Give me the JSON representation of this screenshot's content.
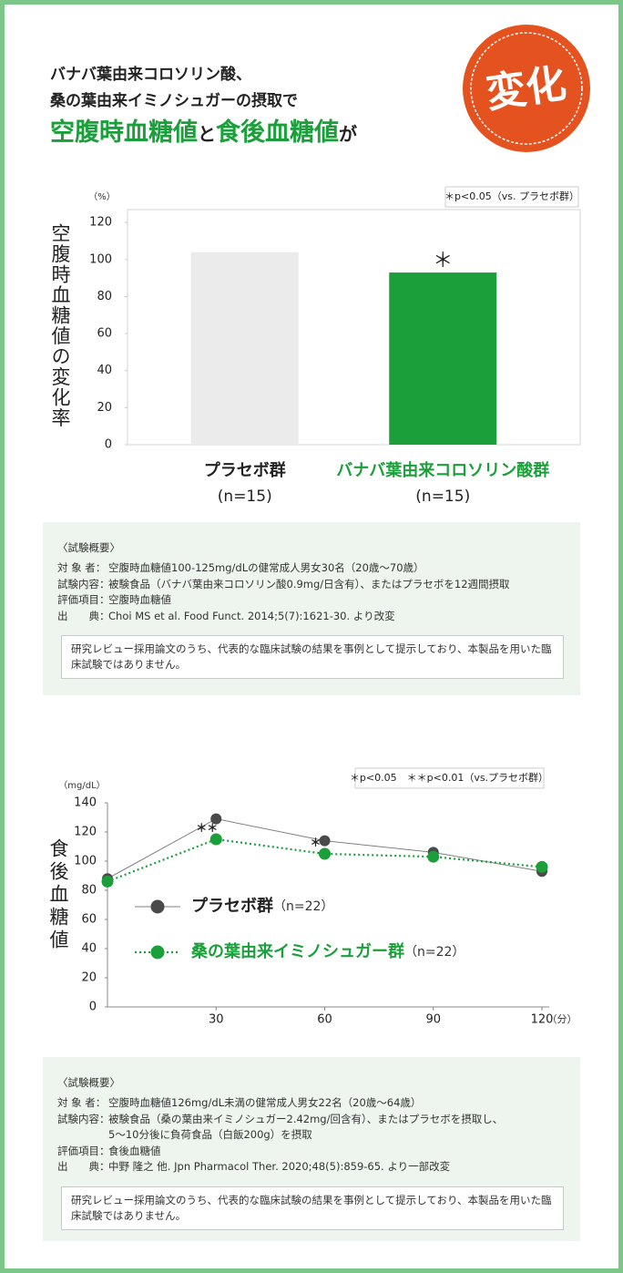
{
  "header": {
    "lines": [
      "バナバ葉由来コロソリン酸、",
      "桑の葉由来イミノシュガーの摂取で"
    ],
    "headline": [
      "空腹時血糖値",
      "と",
      "食後血糖値",
      "が"
    ],
    "badge": "変化"
  },
  "chart_data": [
    {
      "type": "bar",
      "y_label": "空腹時血糖値の変化率",
      "y_unit": "（%）",
      "note": "＊p<0.05（vs. プラセボ群）",
      "categories": [
        "プラセボ群",
        "バナバ葉由来コロソリン酸群"
      ],
      "category_notes": [
        "(n=15)",
        "(n=15)"
      ],
      "values": [
        104,
        93
      ],
      "colors": [
        "#ebebeb",
        "#1a9f3a"
      ],
      "label_colors": [
        "#222222",
        "#1a9f3a"
      ],
      "significance": [
        null,
        "＊"
      ],
      "ylim": [
        0,
        127
      ],
      "yticks": [
        0,
        20,
        40,
        60,
        80,
        100,
        120
      ]
    },
    {
      "type": "line",
      "y_label": "食後血糖値",
      "y_unit": "（mg/dL）",
      "x_unit": "（分）",
      "note": "＊p<0.05　＊＊p<0.01（vs.プラセボ群）",
      "x": [
        0,
        30,
        60,
        90,
        120
      ],
      "xlim": [
        0,
        120
      ],
      "xticks": [
        30,
        60,
        90,
        120
      ],
      "ylim": [
        0,
        140
      ],
      "yticks": [
        0,
        20,
        40,
        60,
        80,
        100,
        120,
        140
      ],
      "series": [
        {
          "name": "プラセボ群",
          "n_label": "（n=22）",
          "color": "#4a4a4a",
          "dashed": false,
          "values": [
            88,
            129,
            114,
            106,
            93
          ],
          "significance": [
            null,
            null,
            null,
            null,
            null
          ]
        },
        {
          "name": "桑の葉由来イミノシュガー群",
          "n_label": "（n=22）",
          "color": "#1a9f3a",
          "dashed": true,
          "values": [
            86,
            115,
            105,
            103,
            96
          ],
          "significance": [
            null,
            "＊＊",
            "＊",
            null,
            null
          ]
        }
      ]
    }
  ],
  "studies": [
    {
      "title": "〈試験概要〉",
      "rows": [
        [
          "対 象 者：",
          "空腹時血糖値100-125mg/dLの健常成人男女30名（20歳〜70歳）"
        ],
        [
          "試験内容：",
          "被験食品（バナバ葉由来コロソリン酸0.9mg/日含有）、またはプラセボを12週間摂取"
        ],
        [
          "評価項目：",
          "空腹時血糖値"
        ],
        [
          "出　　典：",
          "Choi MS et al. Food Funct. 2014;5(7):1621-30. より改変"
        ]
      ],
      "disclaimer": "研究レビュー採用論文のうち、代表的な臨床試験の結果を事例として提示しており、本製品を用いた臨床試験ではありません。"
    },
    {
      "title": "〈試験概要〉",
      "rows": [
        [
          "対 象 者：",
          "空腹時血糖値126mg/dL未満の健常成人男女22名（20歳〜64歳）"
        ],
        [
          "試験内容：",
          [
            "被験食品（桑の葉由来イミノシュガー2.42mg/回含有）、またはプラセボを摂取し、",
            "5〜10分後に負荷食品（白飯200g）を摂取"
          ]
        ],
        [
          "評価項目：",
          "食後血糖値"
        ],
        [
          "出　　典：",
          "中野 隆之 他. Jpn Pharmacol Ther. 2020;48(5):859-65. より一部改変"
        ]
      ],
      "disclaimer": "研究レビュー採用論文のうち、代表的な臨床試験の結果を事例として提示しており、本製品を用いた臨床試験ではありません。"
    }
  ]
}
